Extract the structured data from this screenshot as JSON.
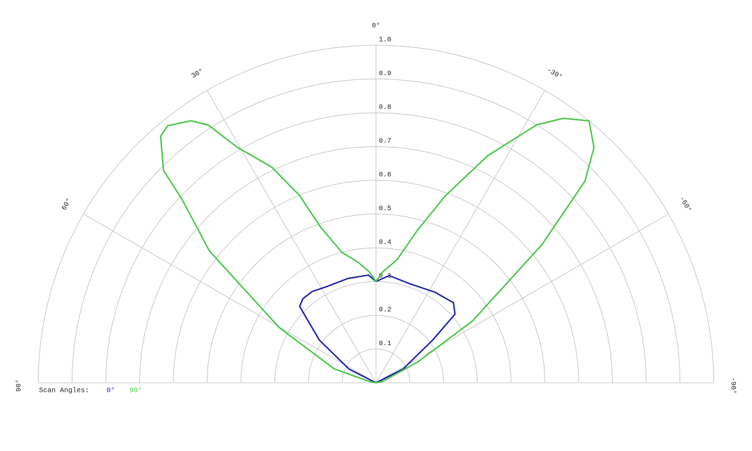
{
  "chart_data": {
    "type": "polar",
    "rlim": [
      0,
      1
    ],
    "rticks": [
      0.1,
      0.2,
      0.3,
      0.4,
      0.5,
      0.6,
      0.7,
      0.8,
      0.9,
      {
        "value": 1,
        "label": "1.0"
      }
    ],
    "thetaticks": [
      {
        "value": 90,
        "label": "90°"
      },
      {
        "value": 60,
        "label": "60°"
      },
      {
        "value": 30,
        "label": "30°"
      },
      {
        "value": 0,
        "label": "0°"
      },
      {
        "value": -30,
        "label": "-30°"
      },
      {
        "value": -60,
        "label": "-60°"
      },
      {
        "value": -90,
        "label": "-90°"
      }
    ],
    "legend_title": "Scan Angles:",
    "grid": true,
    "series": [
      {
        "name": "0°",
        "color": "#1a1aaa",
        "theta": [
          90,
          63,
          53,
          45,
          41,
          35,
          27,
          15,
          4,
          0,
          -7,
          -19,
          -33,
          -44,
          -49,
          -53,
          -63,
          -90
        ],
        "r": [
          0,
          0.09,
          0.21,
          0.32,
          0.33,
          0.33,
          0.32,
          0.32,
          0.32,
          0.3,
          0.32,
          0.31,
          0.32,
          0.33,
          0.31,
          0.21,
          0.09,
          0
        ]
      },
      {
        "name": "90°",
        "color": "#44c444",
        "theta": [
          90,
          79,
          71.6,
          60.3,
          51.6,
          46.6,
          45,
          41.1,
          39,
          35.2,
          33,
          30.5,
          25.8,
          22.2,
          19.6,
          14.7,
          8.3,
          3.6,
          0,
          -3.6,
          -9.7,
          -15.3,
          -20.3,
          -26.2,
          -31.9,
          -35.3,
          -39.1,
          -42.8,
          -46,
          -50.2,
          -57.3,
          -63.4,
          -78,
          -90
        ],
        "r": [
          0,
          0.02,
          0.13,
          0.33,
          0.63,
          0.79,
          0.89,
          0.97,
          0.98,
          0.95,
          0.91,
          0.81,
          0.71,
          0.6,
          0.49,
          0.4,
          0.36,
          0.33,
          0.3,
          0.33,
          0.37,
          0.47,
          0.59,
          0.75,
          0.9,
          0.96,
          1.0,
          0.95,
          0.86,
          0.64,
          0.34,
          0.14,
          0.02,
          0
        ]
      }
    ]
  }
}
